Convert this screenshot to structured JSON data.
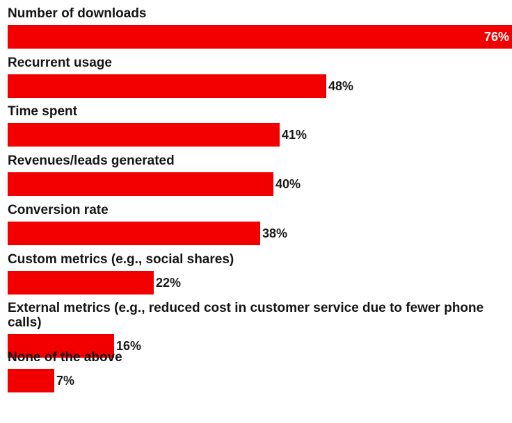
{
  "chart_data": {
    "type": "bar",
    "orientation": "horizontal",
    "categories": [
      "Number of downloads",
      "Recurrent usage",
      "Time spent",
      "Revenues/leads generated",
      "Conversion rate",
      "Custom metrics (e.g., social shares)",
      "External metrics (e.g., reduced cost in customer service due to fewer phone calls)",
      "None of the above"
    ],
    "values": [
      76,
      48,
      41,
      40,
      38,
      22,
      16,
      7
    ],
    "value_labels": [
      "76%",
      "48%",
      "41%",
      "40%",
      "38%",
      "22%",
      "16%",
      "7%"
    ],
    "value_unit": "%",
    "xlim": [
      0,
      76
    ],
    "grid": false,
    "legend": "none",
    "bar_color": "#f20000"
  }
}
